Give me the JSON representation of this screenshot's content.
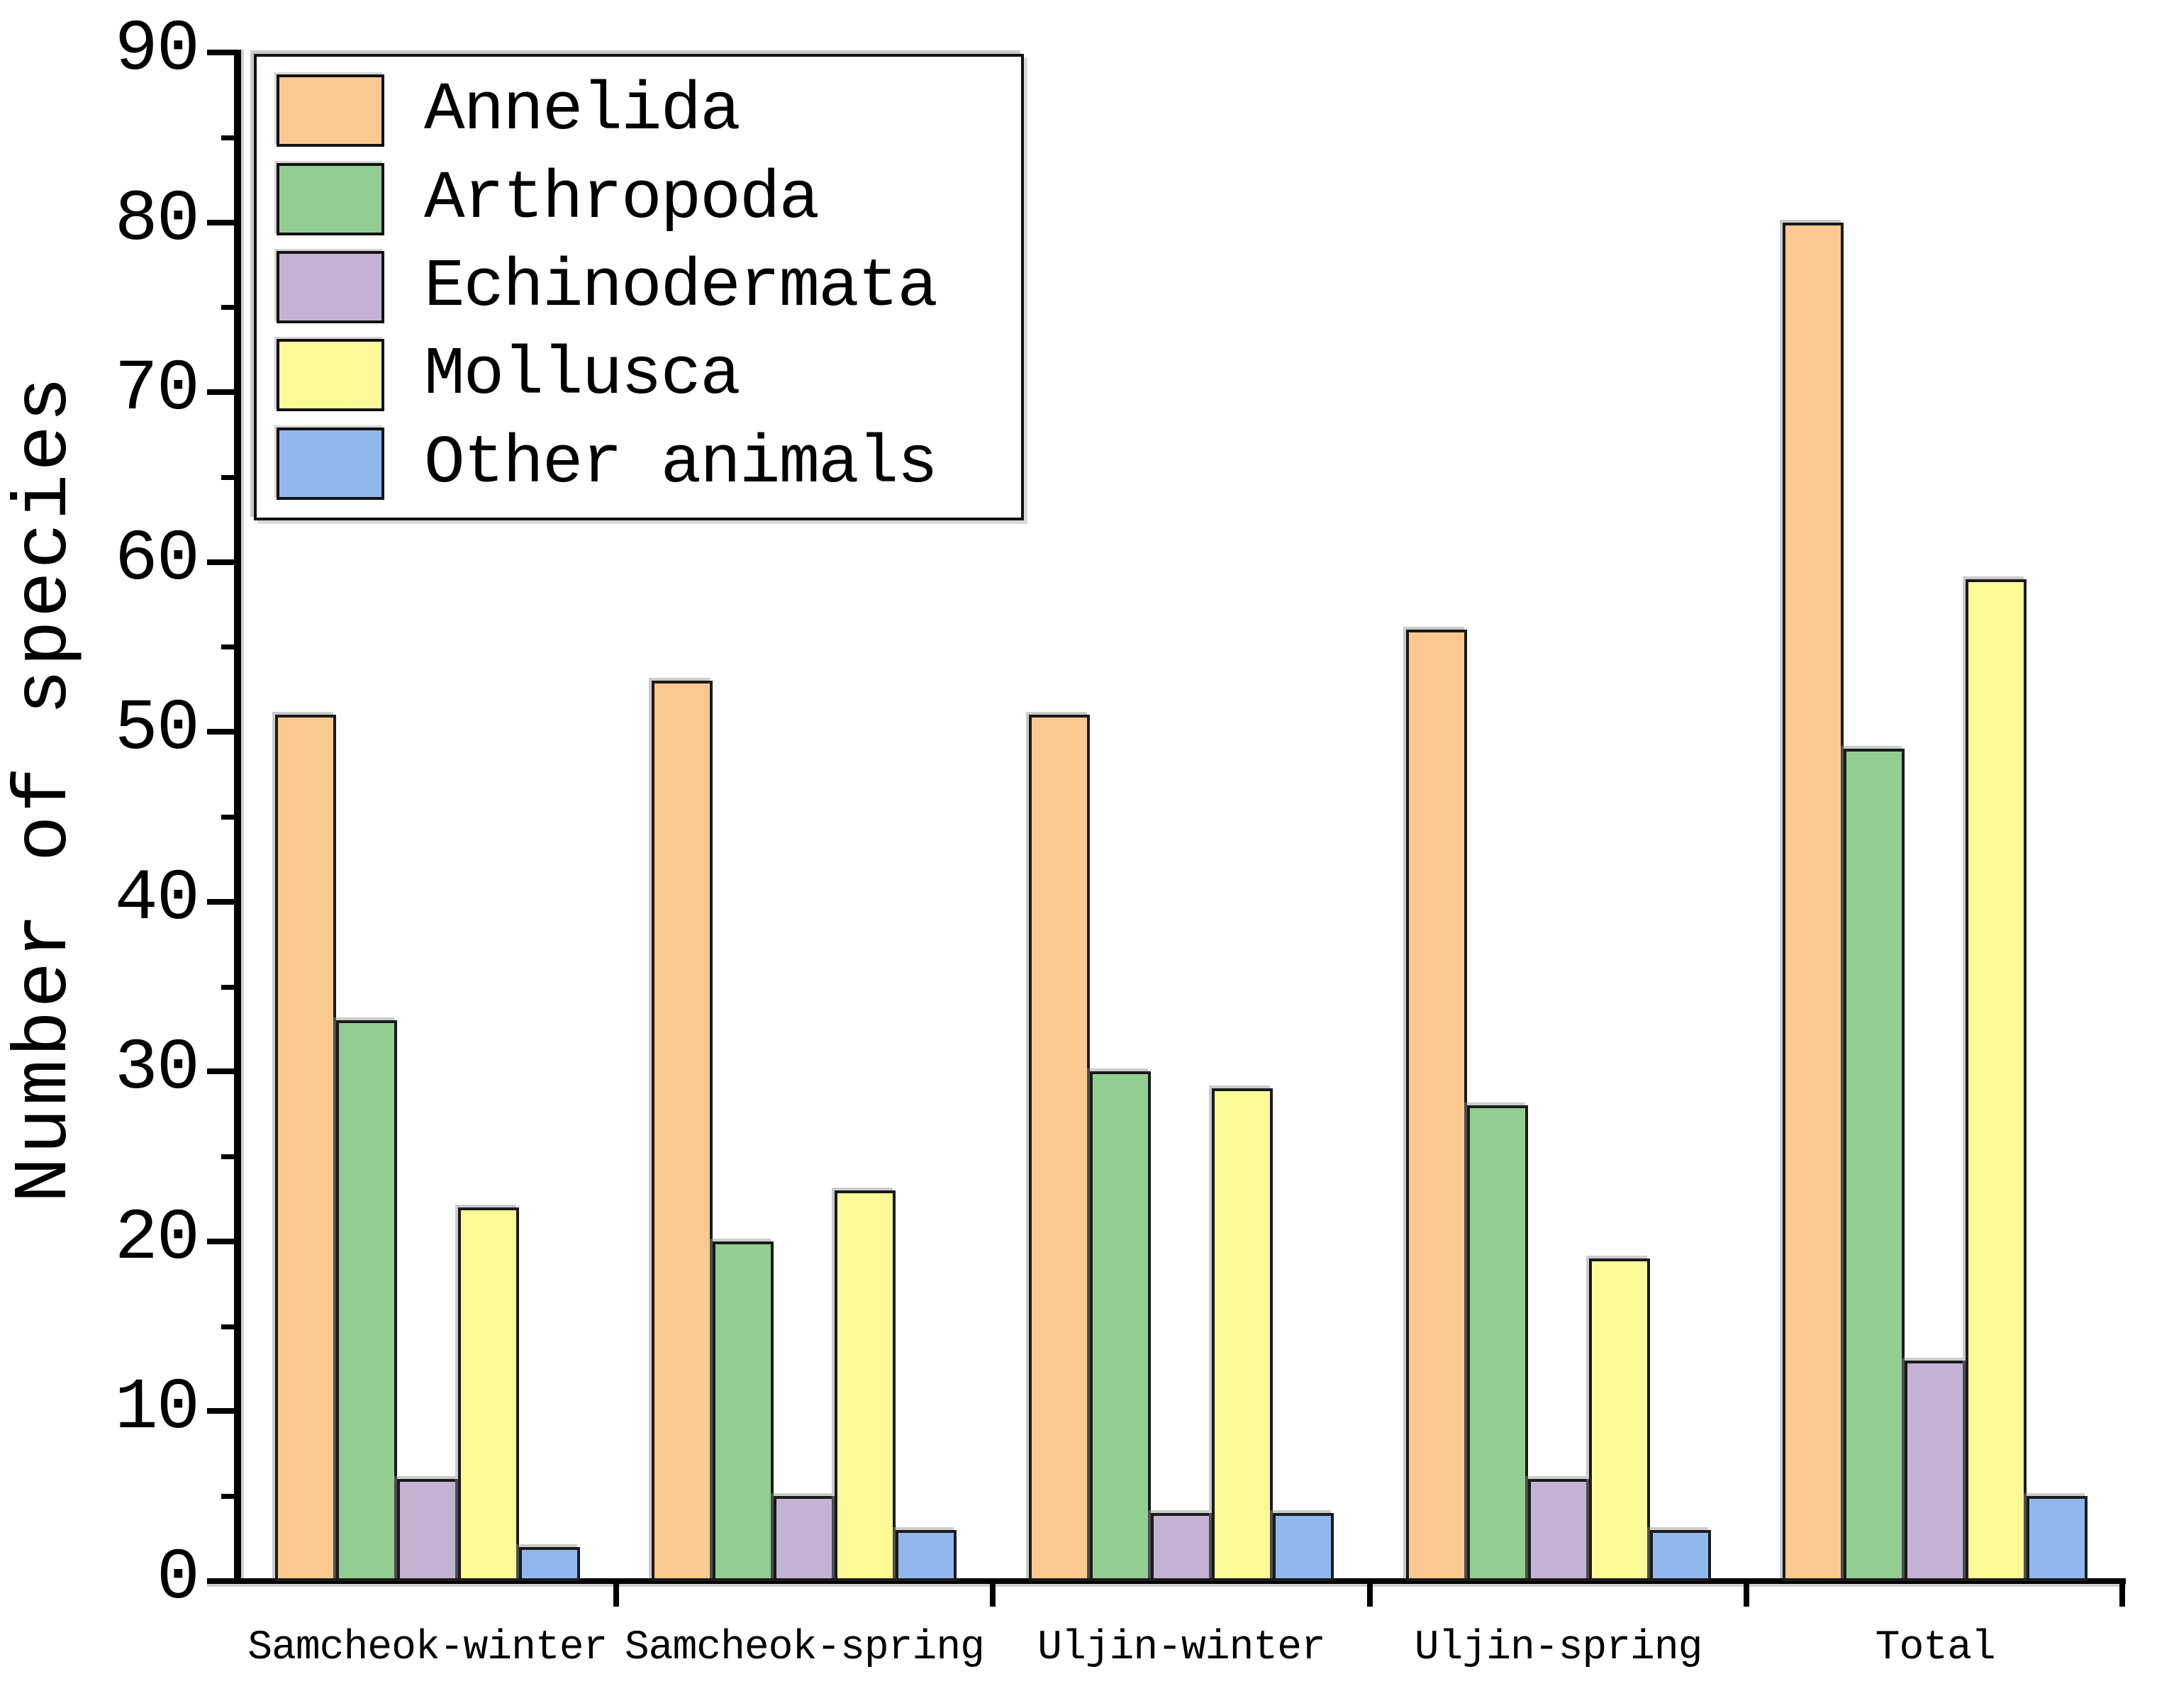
{
  "chart_data": {
    "type": "bar",
    "title": "",
    "xlabel": "",
    "ylabel": "Number of species",
    "ylim": [
      0,
      90
    ],
    "y_tick_step": 10,
    "y_minor_tick_step": 5,
    "grid": false,
    "legend_position": "upper-left",
    "categories": [
      "Samcheok-winter",
      "Samcheok-spring",
      "Uljin-winter",
      "Uljin-spring",
      "Total"
    ],
    "series": [
      {
        "name": "Annelida",
        "color": "#FBC990",
        "values": [
          51,
          53,
          51,
          56,
          80
        ]
      },
      {
        "name": "Arthropoda",
        "color": "#92CE92",
        "values": [
          33,
          20,
          30,
          28,
          49
        ]
      },
      {
        "name": "Echinodermata",
        "color": "#C4B2D5",
        "values": [
          6,
          5,
          4,
          6,
          13
        ]
      },
      {
        "name": "Mollusca",
        "color": "#FBFA97",
        "values": [
          22,
          23,
          29,
          19,
          59
        ]
      },
      {
        "name": "Other animals",
        "color": "#90B8EE",
        "values": [
          2,
          3,
          4,
          3,
          5
        ]
      }
    ],
    "colors": {
      "bar_edge": "#1a1a1a",
      "axis": "#000000",
      "background": "#ffffff",
      "text": "#000000"
    }
  }
}
